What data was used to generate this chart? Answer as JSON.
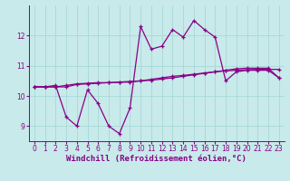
{
  "xlabel": "Windchill (Refroidissement éolien,°C)",
  "xlim": [
    -0.5,
    23.5
  ],
  "ylim": [
    8.5,
    13.0
  ],
  "xticks": [
    0,
    1,
    2,
    3,
    4,
    5,
    6,
    7,
    8,
    9,
    10,
    11,
    12,
    13,
    14,
    15,
    16,
    17,
    18,
    19,
    20,
    21,
    22,
    23
  ],
  "yticks": [
    9,
    10,
    11,
    12
  ],
  "background_color": "#c8eaea",
  "grid_color": "#a8d8d8",
  "line_color": "#880088",
  "line1_x": [
    0,
    1,
    2,
    3,
    4,
    5,
    6,
    7,
    8,
    9,
    10,
    11,
    12,
    13,
    14,
    15,
    16,
    17,
    18,
    19,
    20,
    21,
    22,
    23
  ],
  "line1_y": [
    10.3,
    10.3,
    10.35,
    9.3,
    9.0,
    10.2,
    9.75,
    9.0,
    8.75,
    9.6,
    12.3,
    11.55,
    11.65,
    12.2,
    11.95,
    12.5,
    12.2,
    11.95,
    10.5,
    10.8,
    10.85,
    10.85,
    10.85,
    10.6
  ],
  "line2_x": [
    0,
    1,
    2,
    3,
    4,
    5,
    6,
    7,
    8,
    9,
    10,
    11,
    12,
    13,
    14,
    15,
    16,
    17,
    18,
    19,
    20,
    21,
    22,
    23
  ],
  "line2_y": [
    10.3,
    10.3,
    10.3,
    10.35,
    10.4,
    10.42,
    10.44,
    10.44,
    10.45,
    10.46,
    10.5,
    10.55,
    10.6,
    10.65,
    10.68,
    10.72,
    10.76,
    10.8,
    10.83,
    10.85,
    10.87,
    10.88,
    10.88,
    10.88
  ],
  "line3_x": [
    0,
    1,
    2,
    3,
    4,
    5,
    6,
    7,
    8,
    9,
    10,
    11,
    12,
    13,
    14,
    15,
    16,
    17,
    18,
    19,
    20,
    21,
    22,
    23
  ],
  "line3_y": [
    10.3,
    10.3,
    10.3,
    10.3,
    10.38,
    10.4,
    10.42,
    10.44,
    10.46,
    10.48,
    10.5,
    10.52,
    10.56,
    10.6,
    10.65,
    10.7,
    10.75,
    10.8,
    10.85,
    10.9,
    10.92,
    10.92,
    10.92,
    10.6
  ],
  "tick_fontsize": 5.5,
  "label_fontsize": 6.5
}
